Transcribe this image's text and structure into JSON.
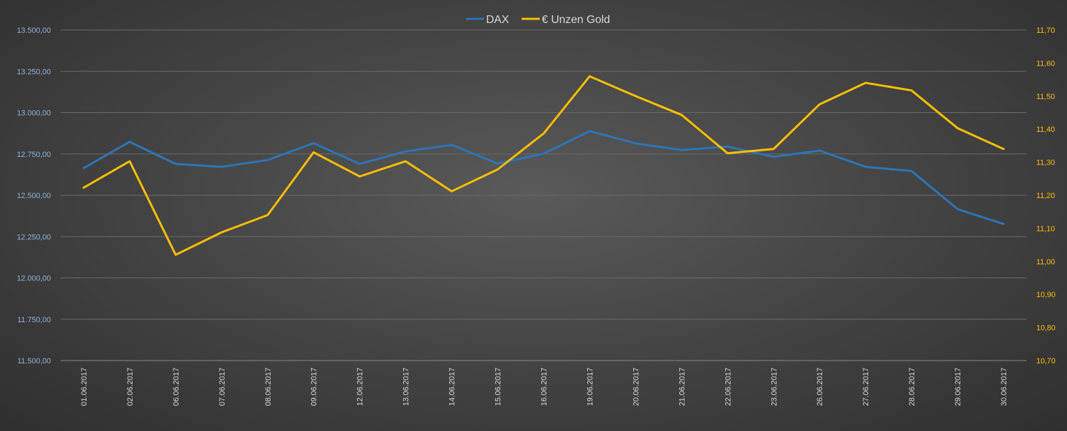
{
  "chart_data": {
    "type": "line",
    "x": [
      "01.06.2017",
      "02.06.2017",
      "06.06.2017",
      "07.06.2017",
      "08.06.2017",
      "09.06.2017",
      "12.06.2017",
      "13.06.2017",
      "14.06.2017",
      "15.06.2017",
      "16.06.2017",
      "19.06.2017",
      "20.06.2017",
      "21.06.2017",
      "22.06.2017",
      "23.06.2017",
      "26.06.2017",
      "27.06.2017",
      "28.06.2017",
      "29.06.2017",
      "30.06.2017"
    ],
    "series": [
      {
        "name": "DAX",
        "axis": "left",
        "color": "#2e75b6",
        "values": [
          12665,
          12823,
          12690,
          12672,
          12713,
          12815,
          12690,
          12765,
          12805,
          12692,
          12752,
          12888,
          12814,
          12774,
          12795,
          12733,
          12770,
          12672,
          12647,
          12416,
          12326
        ]
      },
      {
        "name": "€ Unzen Gold",
        "axis": "right",
        "color": "#ffc000",
        "values": [
          11.223,
          11.303,
          11.02,
          11.088,
          11.14,
          11.33,
          11.257,
          11.303,
          11.212,
          11.278,
          11.387,
          11.56,
          11.5,
          11.443,
          11.327,
          11.34,
          11.475,
          11.54,
          11.517,
          11.403,
          11.34
        ]
      }
    ],
    "y_left": {
      "min": 11500,
      "max": 13500,
      "ticks": [
        "11.500,00",
        "11.750,00",
        "12.000,00",
        "12.250,00",
        "12.500,00",
        "12.750,00",
        "13.000,00",
        "13.250,00",
        "13.500,00"
      ]
    },
    "y_right": {
      "min": 10.7,
      "max": 11.7,
      "ticks": [
        "10,70",
        "10,80",
        "10,90",
        "11,00",
        "11,10",
        "11,20",
        "11,30",
        "11,40",
        "11,50",
        "11,60",
        "11,70"
      ]
    },
    "title": "",
    "legend": "top-center",
    "grid": true,
    "x_tick_rotation": -90
  }
}
